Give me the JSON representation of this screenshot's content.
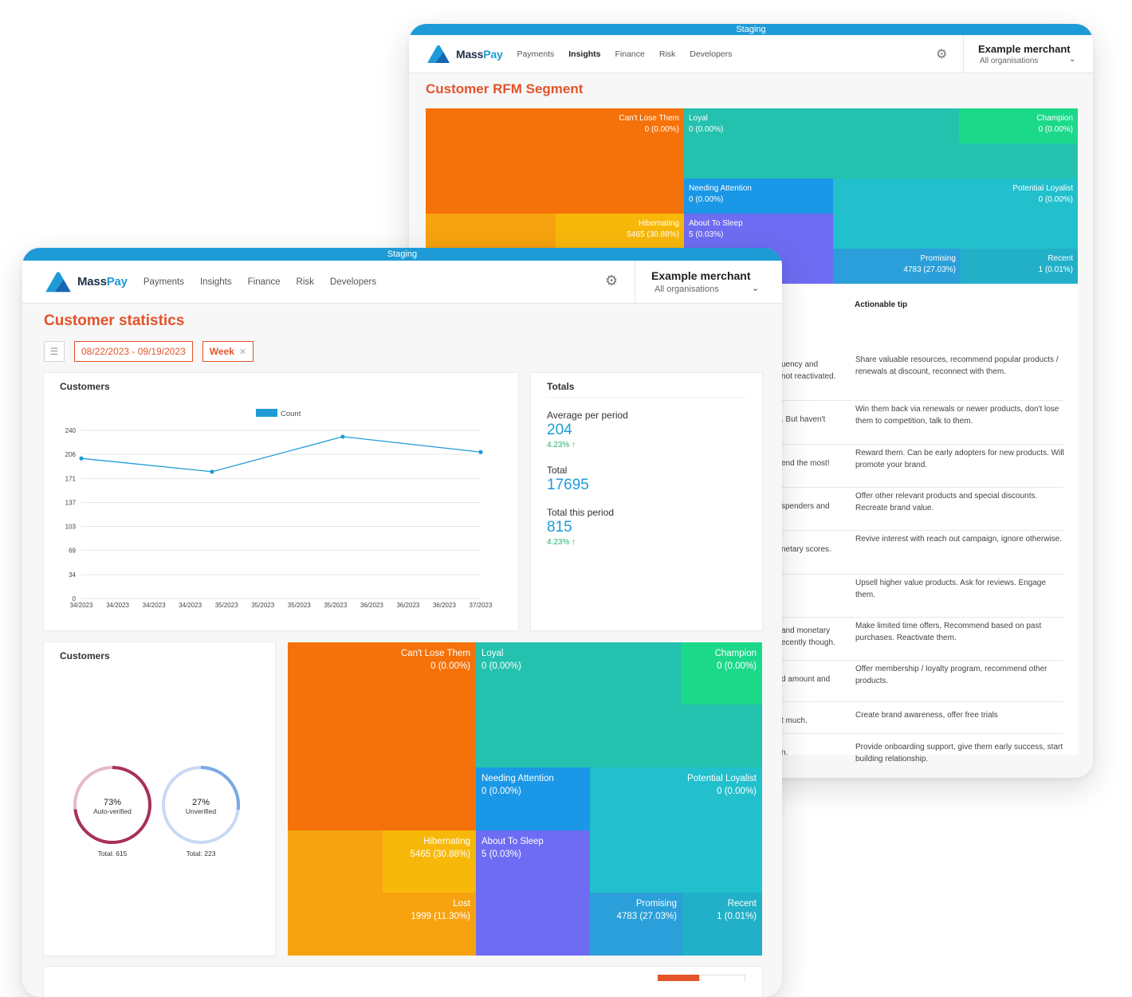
{
  "back": {
    "staging": "Staging",
    "brand": {
      "mass": "Mass",
      "pay": "Pay"
    },
    "nav": [
      "Payments",
      "Insights",
      "Finance",
      "Risk",
      "Developers"
    ],
    "active_nav": "Insights",
    "merchant": {
      "name": "Example merchant",
      "sub": "All organisations"
    },
    "title": "Customer RFM Segment",
    "segments": {
      "cant_lose": {
        "label": "Can't Lose Them",
        "value": "0 (0.00%)"
      },
      "loyal": {
        "label": "Loyal",
        "value": "0 (0.00%)"
      },
      "champion": {
        "label": "Champion",
        "value": "0 (0.00%)"
      },
      "needing": {
        "label": "Needing Attention",
        "value": "0 (0.00%)"
      },
      "potential": {
        "label": "Potential Loyalist",
        "value": "0 (0.00%)"
      },
      "hibernating": {
        "label": "Hibernating",
        "value": "5465 (30.88%)"
      },
      "about_sleep": {
        "label": "About To Sleep",
        "value": "5 (0.03%)"
      },
      "promising": {
        "label": "Promising",
        "value": "4783 (27.03%)"
      },
      "recent": {
        "label": "Recent",
        "value": "1 (0.01%)"
      }
    },
    "tips_header": "Actionable tip",
    "tips": [
      {
        "desc": "uency and\nnot reactivated.",
        "tip": "Share valuable resources, recommend popular products / renewals at discount, reconnect with them."
      },
      {
        "desc": ". But haven't",
        "tip": "Win them back via renewals or newer products, don't lose them to competition, talk to them."
      },
      {
        "desc": "end the most!",
        "tip": "Reward them. Can be early adopters for new products. Will promote your brand."
      },
      {
        "desc": "spenders and",
        "tip": "Offer other relevant products and special discounts. Recreate brand value."
      },
      {
        "desc": "netary scores.",
        "tip": "Revive interest with reach out campaign, ignore otherwise."
      },
      {
        "desc": "",
        "tip": "Upsell higher value products. Ask for reviews. Engage them."
      },
      {
        "desc": "and monetary\necently though.",
        "tip": "Make limited time offers, Recommend based on past purchases. Reactivate them."
      },
      {
        "desc": "d amount and",
        "tip": "Offer membership / loyalty program, recommend other products."
      },
      {
        "desc": "t much.",
        "tip": "Create brand awareness, offer free trials"
      },
      {
        "desc": "n.",
        "tip": "Provide onboarding support, give them early success, start building relationship."
      }
    ]
  },
  "front": {
    "staging": "Staging",
    "brand": {
      "mass": "Mass",
      "pay": "Pay"
    },
    "nav": [
      "Payments",
      "Insights",
      "Finance",
      "Risk",
      "Developers"
    ],
    "merchant": {
      "name": "Example merchant",
      "sub": "All organisations"
    },
    "title": "Customer statistics",
    "filters": {
      "date_range": "08/22/2023 - 09/19/2023",
      "period": "Week"
    },
    "customers_title": "Customers",
    "totals": {
      "title": "Totals",
      "avg_label": "Average per period",
      "avg_value": "204",
      "avg_change": "4.23%",
      "total_label": "Total",
      "total_value": "17695",
      "period_label": "Total this period",
      "period_value": "815",
      "period_change": "4.23%"
    },
    "verification": {
      "title": "Customers",
      "auto": {
        "pct": "73%",
        "label": "Auto-verified",
        "total": "Total: 615",
        "fraction": 0.73
      },
      "unverified": {
        "pct": "27%",
        "label": "Unverified",
        "total": "Total: 223",
        "fraction": 0.27
      }
    },
    "segments": {
      "cant_lose": {
        "label": "Can't Lose Them",
        "value": "0 (0.00%)"
      },
      "loyal": {
        "label": "Loyal",
        "value": "0 (0.00%)"
      },
      "champion": {
        "label": "Champion",
        "value": "0 (0.00%)"
      },
      "needing": {
        "label": "Needing Attention",
        "value": "0 (0.00%)"
      },
      "potential": {
        "label": "Potential Loyalist",
        "value": "0 (0.00%)"
      },
      "hibernating": {
        "label": "Hibernating",
        "value": "5465 (30.88%)"
      },
      "about_sleep": {
        "label": "About To Sleep",
        "value": "5 (0.03%)"
      },
      "lost": {
        "label": "Lost",
        "value": "1999 (11.30%)"
      },
      "promising": {
        "label": "Promising",
        "value": "4783 (27.03%)"
      },
      "recent": {
        "label": "Recent",
        "value": "1 (0.01%)"
      }
    }
  },
  "colors": {
    "accent": "#e4532a",
    "primary": "#1e9bd7",
    "positive": "#22b573",
    "cant_lose": "#f5720a",
    "loyal": "#24c2ae",
    "champion": "#1cd98a",
    "needing": "#1a97e6",
    "potential": "#22bfcc",
    "hibernating": "#f7b80a",
    "lost": "#f7a20f",
    "about_sleep": "#6e6cf2",
    "promising": "#2a9fd9",
    "recent": "#22b0c8",
    "auto_ring": "#a8305a",
    "unverified_ring": "#7aa8e6"
  },
  "chart_data": {
    "type": "line",
    "legend": [
      "Count"
    ],
    "x": [
      "34/2023",
      "34/2023",
      "34/2023",
      "34/2023",
      "35/2023",
      "35/2023",
      "35/2023",
      "35/2023",
      "36/2023",
      "36/2023",
      "36/2023",
      "37/2023"
    ],
    "yticks": [
      0,
      34,
      69,
      103,
      137,
      171,
      206,
      240
    ],
    "ylim": [
      0,
      240
    ],
    "series": [
      {
        "name": "Count",
        "points": [
          {
            "x": 0,
            "y": 200
          },
          {
            "x": 3.6,
            "y": 181
          },
          {
            "x": 7.2,
            "y": 231
          },
          {
            "x": 11,
            "y": 209
          }
        ]
      }
    ]
  }
}
